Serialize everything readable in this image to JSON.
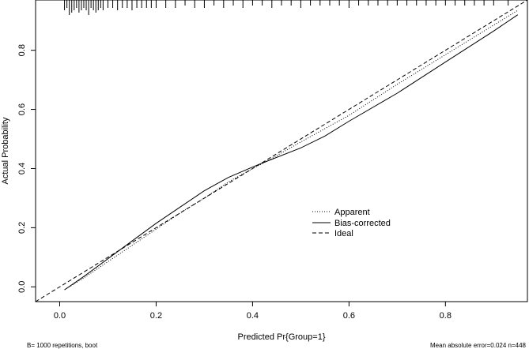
{
  "chart_data": {
    "type": "line",
    "title": "",
    "xlabel": "Predicted Pr{Group=1}",
    "ylabel": "Actual Probability",
    "xlim": [
      -0.05,
      0.97
    ],
    "ylim": [
      -0.05,
      0.97
    ],
    "x_ticks": [
      0.0,
      0.2,
      0.4,
      0.6,
      0.8
    ],
    "y_ticks": [
      0.0,
      0.2,
      0.4,
      0.6,
      0.8
    ],
    "x_tick_labels": [
      "0.0",
      "0.2",
      "0.4",
      "0.6",
      "0.8"
    ],
    "y_tick_labels": [
      "0.0",
      "0.2",
      "0.4",
      "0.6",
      "0.8"
    ],
    "grid": false,
    "legend_position": "center-right",
    "series": [
      {
        "name": "Apparent",
        "style": "dotted",
        "x": [
          0.01,
          0.05,
          0.1,
          0.15,
          0.2,
          0.25,
          0.3,
          0.35,
          0.4,
          0.43,
          0.5,
          0.55,
          0.6,
          0.7,
          0.8,
          0.9,
          0.95
        ],
        "y": [
          -0.01,
          0.03,
          0.085,
          0.14,
          0.195,
          0.25,
          0.3,
          0.355,
          0.4,
          0.425,
          0.49,
          0.535,
          0.58,
          0.685,
          0.785,
          0.885,
          0.935
        ]
      },
      {
        "name": "Bias-corrected",
        "style": "solid",
        "x": [
          0.01,
          0.05,
          0.1,
          0.15,
          0.2,
          0.25,
          0.3,
          0.35,
          0.4,
          0.43,
          0.5,
          0.55,
          0.6,
          0.7,
          0.8,
          0.9,
          0.95
        ],
        "y": [
          -0.01,
          0.035,
          0.095,
          0.155,
          0.215,
          0.27,
          0.325,
          0.37,
          0.405,
          0.425,
          0.47,
          0.51,
          0.56,
          0.655,
          0.76,
          0.865,
          0.92
        ]
      },
      {
        "name": "Ideal",
        "style": "dashed",
        "x": [
          -0.05,
          0.97
        ],
        "y": [
          -0.05,
          0.97
        ]
      }
    ],
    "rug": {
      "description": "distribution of predicted probabilities along the top axis",
      "x": [
        0.01,
        0.015,
        0.02,
        0.025,
        0.03,
        0.035,
        0.04,
        0.045,
        0.05,
        0.055,
        0.06,
        0.065,
        0.07,
        0.075,
        0.08,
        0.085,
        0.09,
        0.1,
        0.11,
        0.12,
        0.13,
        0.14,
        0.15,
        0.16,
        0.17,
        0.18,
        0.19,
        0.2,
        0.22,
        0.24,
        0.26,
        0.28,
        0.3,
        0.32,
        0.34,
        0.36,
        0.38,
        0.4,
        0.42,
        0.44,
        0.46,
        0.48,
        0.5,
        0.52,
        0.54,
        0.56,
        0.58,
        0.6,
        0.62,
        0.64,
        0.66,
        0.68,
        0.7,
        0.72,
        0.74,
        0.76,
        0.78,
        0.8,
        0.82,
        0.84,
        0.86,
        0.88,
        0.9,
        0.93
      ],
      "heights": [
        3,
        2,
        5,
        4,
        3,
        2,
        4,
        3,
        2,
        3,
        5,
        2,
        3,
        4,
        3,
        2,
        3,
        2,
        2,
        3,
        2,
        2,
        3,
        2,
        2,
        2,
        2,
        2,
        2,
        2,
        1,
        2,
        2,
        1,
        2,
        1,
        2,
        1,
        1,
        2,
        1,
        1,
        2,
        1,
        1,
        1,
        1,
        2,
        1,
        1,
        1,
        1,
        1,
        1,
        1,
        1,
        1,
        1,
        1,
        1,
        1,
        1,
        1,
        1
      ]
    }
  },
  "footer": {
    "left": "B= 1000 repetitions, boot",
    "right": "Mean absolute error=0.024 n=448"
  }
}
